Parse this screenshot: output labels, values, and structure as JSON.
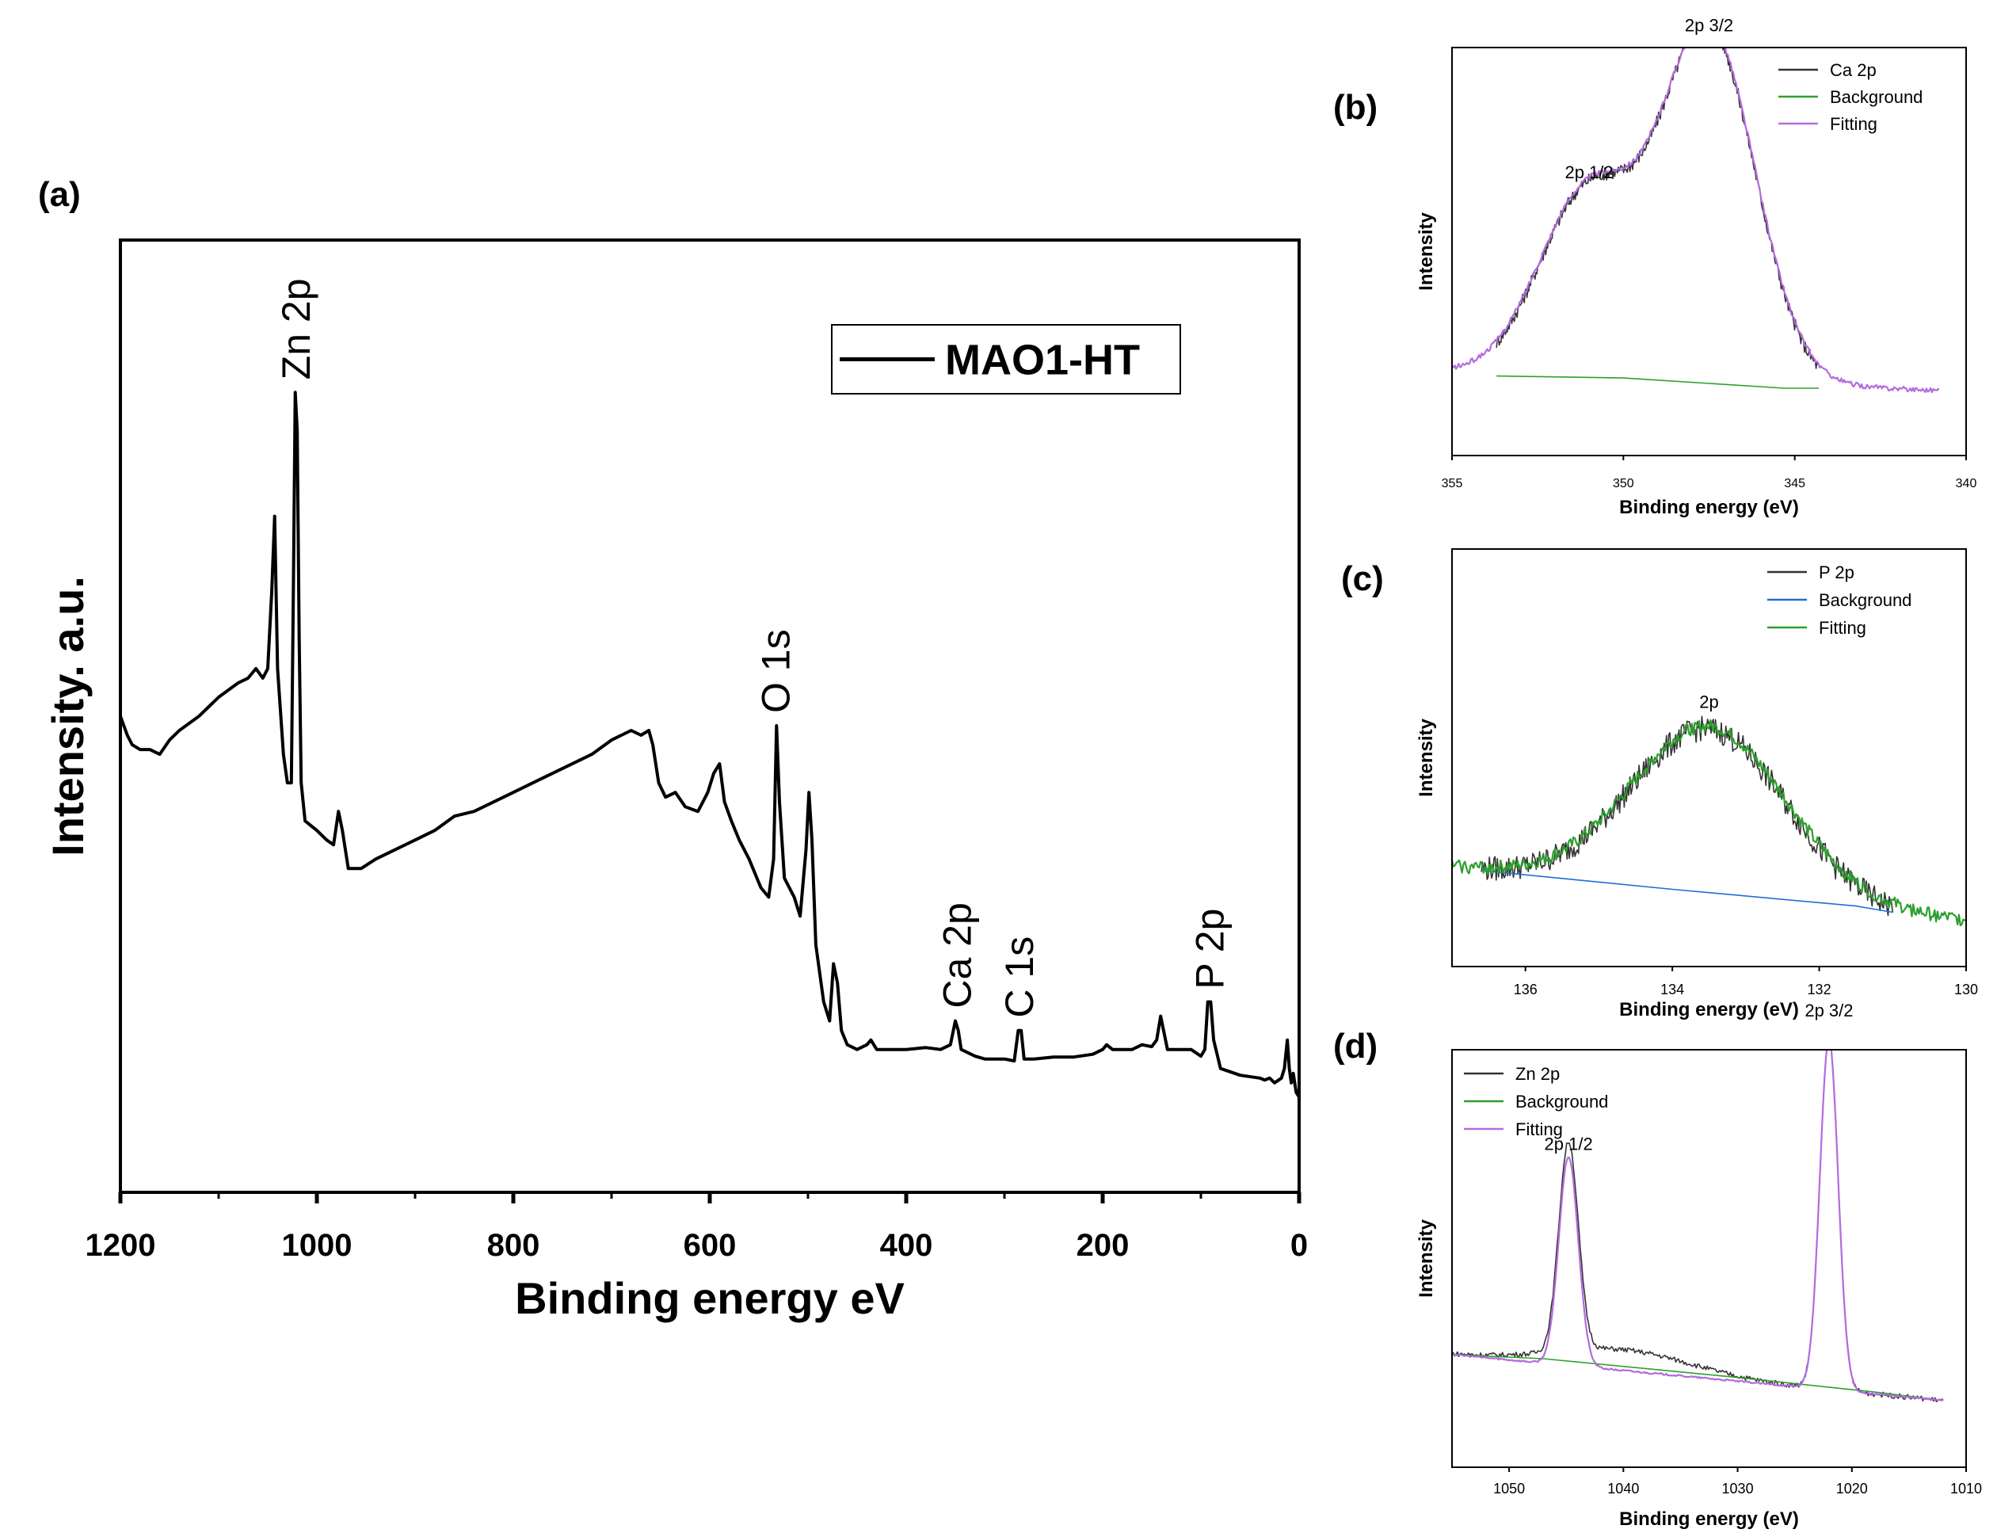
{
  "chart_data": [
    {
      "id": "a",
      "panel_label": "(a)",
      "type": "line",
      "title": "",
      "xlabel": "Binding energy eV",
      "ylabel": "Intensity. a.u.",
      "xlim": [
        1200,
        0
      ],
      "ylim": [
        0,
        100
      ],
      "xticks": [
        1200,
        1000,
        800,
        600,
        400,
        200,
        0
      ],
      "yticks_shown": false,
      "legend": {
        "position": "top-right",
        "entries": [
          {
            "label": "MAO1-HT",
            "color": "#000000"
          }
        ]
      },
      "series": [
        {
          "name": "MAO1-HT",
          "color": "#000000",
          "points": [
            [
              1200,
              50
            ],
            [
              1193,
              48
            ],
            [
              1188,
              47
            ],
            [
              1180,
              46.5
            ],
            [
              1170,
              46.5
            ],
            [
              1160,
              46
            ],
            [
              1150,
              47.5
            ],
            [
              1140,
              48.5
            ],
            [
              1120,
              50
            ],
            [
              1100,
              52
            ],
            [
              1080,
              53.5
            ],
            [
              1070,
              54
            ],
            [
              1062,
              55
            ],
            [
              1055,
              54
            ],
            [
              1050,
              55
            ],
            [
              1046,
              63
            ],
            [
              1043,
              71
            ],
            [
              1040,
              55
            ],
            [
              1034,
              46
            ],
            [
              1030,
              43
            ],
            [
              1026,
              43
            ],
            [
              1024,
              62
            ],
            [
              1022,
              84
            ],
            [
              1020,
              80
            ],
            [
              1018,
              58
            ],
            [
              1016,
              43
            ],
            [
              1012,
              39
            ],
            [
              1000,
              38
            ],
            [
              990,
              37
            ],
            [
              983,
              36.5
            ],
            [
              978,
              40
            ],
            [
              974,
              38
            ],
            [
              968,
              34
            ],
            [
              955,
              34
            ],
            [
              940,
              35
            ],
            [
              920,
              36
            ],
            [
              900,
              37
            ],
            [
              880,
              38
            ],
            [
              860,
              39.5
            ],
            [
              840,
              40
            ],
            [
              820,
              41
            ],
            [
              800,
              42
            ],
            [
              780,
              43
            ],
            [
              760,
              44
            ],
            [
              740,
              45
            ],
            [
              720,
              46
            ],
            [
              700,
              47.5
            ],
            [
              690,
              48
            ],
            [
              680,
              48.5
            ],
            [
              670,
              48
            ],
            [
              662,
              48.5
            ],
            [
              658,
              47
            ],
            [
              652,
              43
            ],
            [
              645,
              41.5
            ],
            [
              635,
              42
            ],
            [
              625,
              40.5
            ],
            [
              612,
              40
            ],
            [
              602,
              42
            ],
            [
              596,
              44
            ],
            [
              590,
              45
            ],
            [
              585,
              41
            ],
            [
              578,
              39
            ],
            [
              570,
              37
            ],
            [
              560,
              35
            ],
            [
              548,
              32
            ],
            [
              540,
              31
            ],
            [
              535,
              35
            ],
            [
              532,
              49
            ],
            [
              529,
              41
            ],
            [
              524,
              33
            ],
            [
              514,
              31
            ],
            [
              508,
              29
            ],
            [
              502,
              36
            ],
            [
              499,
              42
            ],
            [
              496,
              37
            ],
            [
              492,
              26
            ],
            [
              484,
              20
            ],
            [
              478,
              18
            ],
            [
              474,
              24
            ],
            [
              470,
              22
            ],
            [
              466,
              17
            ],
            [
              460,
              15.5
            ],
            [
              450,
              15
            ],
            [
              440,
              15.5
            ],
            [
              436,
              16
            ],
            [
              430,
              15
            ],
            [
              420,
              15
            ],
            [
              400,
              15
            ],
            [
              380,
              15.2
            ],
            [
              365,
              15
            ],
            [
              355,
              15.5
            ],
            [
              350,
              18
            ],
            [
              347,
              17
            ],
            [
              344,
              15
            ],
            [
              330,
              14.3
            ],
            [
              320,
              14
            ],
            [
              300,
              14
            ],
            [
              290,
              13.8
            ],
            [
              286,
              17
            ],
            [
              283,
              17
            ],
            [
              280,
              14
            ],
            [
              270,
              14
            ],
            [
              250,
              14.2
            ],
            [
              230,
              14.2
            ],
            [
              210,
              14.5
            ],
            [
              200,
              15
            ],
            [
              196,
              15.5
            ],
            [
              190,
              15
            ],
            [
              170,
              15
            ],
            [
              160,
              15.5
            ],
            [
              150,
              15.3
            ],
            [
              145,
              16
            ],
            [
              141,
              18.5
            ],
            [
              138,
              17
            ],
            [
              134,
              15
            ],
            [
              120,
              15
            ],
            [
              110,
              15
            ],
            [
              100,
              14.3
            ],
            [
              96,
              15
            ],
            [
              93,
              20
            ],
            [
              90,
              20
            ],
            [
              87,
              16
            ],
            [
              80,
              13
            ],
            [
              60,
              12.3
            ],
            [
              40,
              12
            ],
            [
              35,
              11.8
            ],
            [
              30,
              12
            ],
            [
              25,
              11.5
            ],
            [
              18,
              12
            ],
            [
              15,
              13
            ],
            [
              12,
              16
            ],
            [
              10,
              13
            ],
            [
              8,
              11.5
            ],
            [
              6,
              12.5
            ],
            [
              3,
              10.5
            ],
            [
              0,
              10
            ]
          ]
        }
      ],
      "annotations": [
        {
          "text": "Zn 2p",
          "x": 1020,
          "y": 84
        },
        {
          "text": "O 1s",
          "x": 532,
          "y": 49
        },
        {
          "text": "Ca 2p",
          "x": 347,
          "y": 18
        },
        {
          "text": "C 1s",
          "x": 284,
          "y": 17
        },
        {
          "text": "P 2p",
          "x": 90,
          "y": 20
        }
      ]
    },
    {
      "id": "b",
      "panel_label": "(b)",
      "type": "line",
      "title": "",
      "xlabel": "Binding energy (eV)",
      "ylabel": "Intensity",
      "xlim": [
        355,
        340
      ],
      "ylim": [
        0,
        100
      ],
      "xticks": [
        355,
        350,
        345,
        340
      ],
      "legend": {
        "position": "top-right",
        "entries": [
          {
            "label": "Ca 2p",
            "color": "#333333"
          },
          {
            "label": "Background",
            "color": "#2ca02c"
          },
          {
            "label": "Fitting",
            "color": "#b46be0"
          }
        ]
      },
      "series": [
        {
          "name": "Ca 2p",
          "color": "#333333",
          "peaks": [
            [
              351.0,
              0.46,
              1.45
            ],
            [
              347.5,
              0.86,
              1.35
            ]
          ],
          "baseline": [
            [
              353.7,
              19.5
            ],
            [
              344.3,
              16.5
            ]
          ],
          "x_range": [
            353.7,
            344.3
          ],
          "noise": 1.6
        },
        {
          "name": "Background",
          "color": "#2ca02c",
          "points": [
            [
              353.7,
              19.5
            ],
            [
              350.0,
              19.0
            ],
            [
              345.3,
              16.5
            ],
            [
              344.3,
              16.5
            ]
          ]
        },
        {
          "name": "Fitting",
          "color": "#b46be0",
          "peaks": [
            [
              351.0,
              0.46,
              1.45
            ],
            [
              347.5,
              0.86,
              1.35
            ]
          ],
          "baseline": [
            [
              355,
              20.5
            ],
            [
              340.8,
              16.0
            ]
          ],
          "x_range": [
            355,
            340.8
          ],
          "noise": 0.6
        }
      ],
      "annotations": [
        {
          "text": "2p 1/2",
          "x": 351.0,
          "y": 68
        },
        {
          "text": "2p 3/2",
          "x": 347.5,
          "y": 104
        }
      ]
    },
    {
      "id": "c",
      "panel_label": "(c)",
      "type": "line",
      "title": "",
      "xlabel": "Binding energy (eV)",
      "ylabel": "Intensity",
      "xlim": [
        137,
        130
      ],
      "ylim": [
        0,
        100
      ],
      "xticks": [
        136,
        134,
        132,
        130
      ],
      "legend": {
        "position": "top-right",
        "entries": [
          {
            "label": "P 2p",
            "color": "#333333"
          },
          {
            "label": "Background",
            "color": "#1f6fd6"
          },
          {
            "label": "Fitting",
            "color": "#2ca02c"
          }
        ]
      },
      "series": [
        {
          "name": "P 2p",
          "color": "#333333",
          "peaks": [
            [
              133.5,
              0.4,
              1.05
            ]
          ],
          "baseline": [
            [
              136.6,
              23
            ],
            [
              131.0,
              12
            ]
          ],
          "x_range": [
            136.6,
            131.0
          ],
          "noise": 3.0
        },
        {
          "name": "Background",
          "color": "#1f6fd6",
          "points": [
            [
              136.6,
              23
            ],
            [
              134.0,
              18.5
            ],
            [
              131.5,
              14.5
            ],
            [
              131.0,
              13
            ]
          ]
        },
        {
          "name": "Fitting",
          "color": "#2ca02c",
          "peaks": [
            [
              133.5,
              0.4,
              1.05
            ]
          ],
          "baseline": [
            [
              137,
              24
            ],
            [
              130,
              11
            ]
          ],
          "x_range": [
            137,
            130
          ],
          "noise": 1.6
        }
      ],
      "annotations": [
        {
          "text": "2p",
          "x": 133.5,
          "y": 62
        }
      ]
    },
    {
      "id": "d",
      "panel_label": "(d)",
      "type": "line",
      "title": "",
      "xlabel": "Binding energy (eV)",
      "ylabel": "Intensity",
      "xlim": [
        1055,
        1010
      ],
      "ylim": [
        0,
        100
      ],
      "xticks": [
        1050,
        1040,
        1030,
        1020,
        1010
      ],
      "legend": {
        "position": "top-left",
        "entries": [
          {
            "label": "Zn 2p",
            "color": "#333333"
          },
          {
            "label": "Background",
            "color": "#2ca02c"
          },
          {
            "label": "Fitting",
            "color": "#b46be0"
          }
        ]
      },
      "series": [
        {
          "name": "Zn 2p",
          "color": "#333333",
          "peaks": [
            [
              1044.8,
              0.5,
              0.85
            ],
            [
              1022.0,
              0.84,
              0.8
            ]
          ],
          "shoulder": [
            [
              1040,
              5,
              6
            ]
          ],
          "baseline": [
            [
              1055,
              27
            ],
            [
              1012,
              16
            ]
          ],
          "x_range": [
            1055,
            1012
          ],
          "noise": 0.6
        },
        {
          "name": "Background",
          "color": "#2ca02c",
          "points": [
            [
              1055,
              27
            ],
            [
              1047,
              26
            ],
            [
              1030,
              21.5
            ],
            [
              1018,
              18
            ],
            [
              1012,
              16
            ]
          ]
        },
        {
          "name": "Fitting",
          "color": "#b46be0",
          "peaks": [
            [
              1044.8,
              0.5,
              0.85
            ],
            [
              1022.0,
              0.84,
              0.8
            ]
          ],
          "baseline": [
            [
              1055,
              27
            ],
            [
              1012,
              16
            ]
          ],
          "x_range": [
            1055,
            1012
          ],
          "noise": 0.2
        }
      ],
      "annotations": [
        {
          "text": "2p 1/2",
          "x": 1044.8,
          "y": 76
        },
        {
          "text": "2p 3/2",
          "x": 1022.0,
          "y": 108
        }
      ]
    }
  ]
}
